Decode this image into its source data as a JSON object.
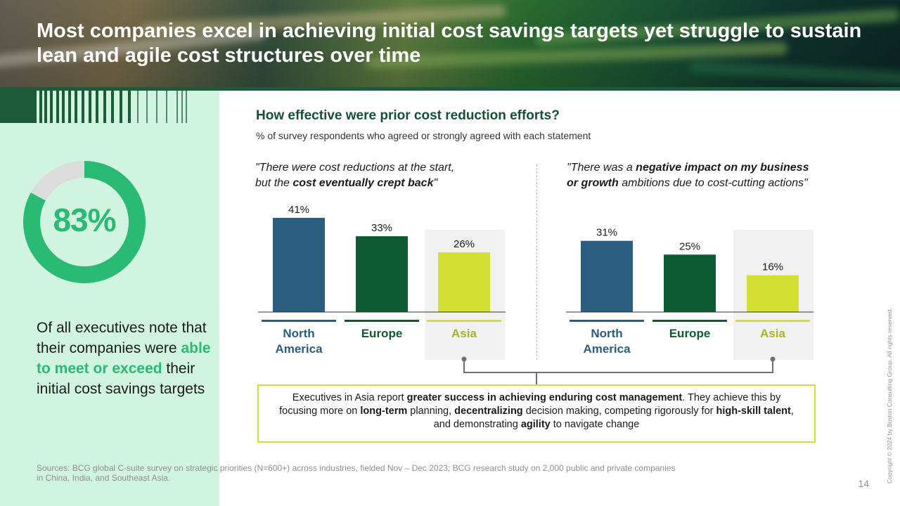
{
  "title": "Most companies excel in achieving initial cost savings targets yet struggle to sustain lean and agile cost structures over time",
  "kpi": {
    "value_label": "83%",
    "value": 83,
    "text_parts": [
      "Of all executives note that their companies were ",
      "able to meet or exceed",
      " their initial cost savings targets"
    ]
  },
  "colors": {
    "north_america": "#2a5d80",
    "europe": "#0e5a32",
    "asia": "#d4df33",
    "donut_fill": "#29ba74",
    "donut_rest": "#dcdcdc",
    "highlight_bg": "#f1f1f1"
  },
  "chart_heading": {
    "title": "How effective were prior cost reduction efforts?",
    "subtitle": "% of survey respondents who agreed or strongly agreed with each statement"
  },
  "chart_data": [
    {
      "type": "bar",
      "title_parts": [
        "\"There were cost reductions at the start,",
        "but the ",
        "cost eventually crept back",
        "\""
      ],
      "categories": [
        "North America",
        "Europe",
        "Asia"
      ],
      "values": [
        41,
        33,
        26
      ],
      "value_labels": [
        "41%",
        "33%",
        "26%"
      ],
      "highlight_category": "Asia",
      "ylim": [
        0,
        41
      ]
    },
    {
      "type": "bar",
      "title_parts": [
        "\"There was a ",
        "negative impact on my business",
        "or growth",
        " ambitions due to cost-cutting actions\""
      ],
      "categories": [
        "North America",
        "Europe",
        "Asia"
      ],
      "values": [
        31,
        25,
        16
      ],
      "value_labels": [
        "31%",
        "25%",
        "16%"
      ],
      "highlight_category": "Asia",
      "ylim": [
        0,
        41
      ]
    }
  ],
  "category_lines": [
    [
      "North",
      "America"
    ],
    [
      "Europe"
    ],
    [
      "Asia"
    ]
  ],
  "callout": {
    "parts": [
      {
        "t": "Executives in Asia report ",
        "b": false
      },
      {
        "t": "greater success in achieving enduring cost management",
        "b": true
      },
      {
        "t": ". They achieve this by focusing more on ",
        "b": false
      },
      {
        "t": "long-term",
        "b": true
      },
      {
        "t": " planning, ",
        "b": false
      },
      {
        "t": "decentralizing",
        "b": true
      },
      {
        "t": " decision making, competing rigorously for ",
        "b": false
      },
      {
        "t": "high-skill talent",
        "b": true
      },
      {
        "t": ", and demonstrating ",
        "b": false
      },
      {
        "t": "agility",
        "b": true
      },
      {
        "t": " to navigate change",
        "b": false
      }
    ]
  },
  "sources": "Sources: BCG global C-suite survey on strategic priorities (N=600+) across industries, fielded Nov – Dec 2023; BCG research study on 2,000 public and private companies in China, India, and Southeast Asia.",
  "copyright": "Copyright © 2024 by Boston Consulting Group. All rights reserved.",
  "page_number": "14"
}
